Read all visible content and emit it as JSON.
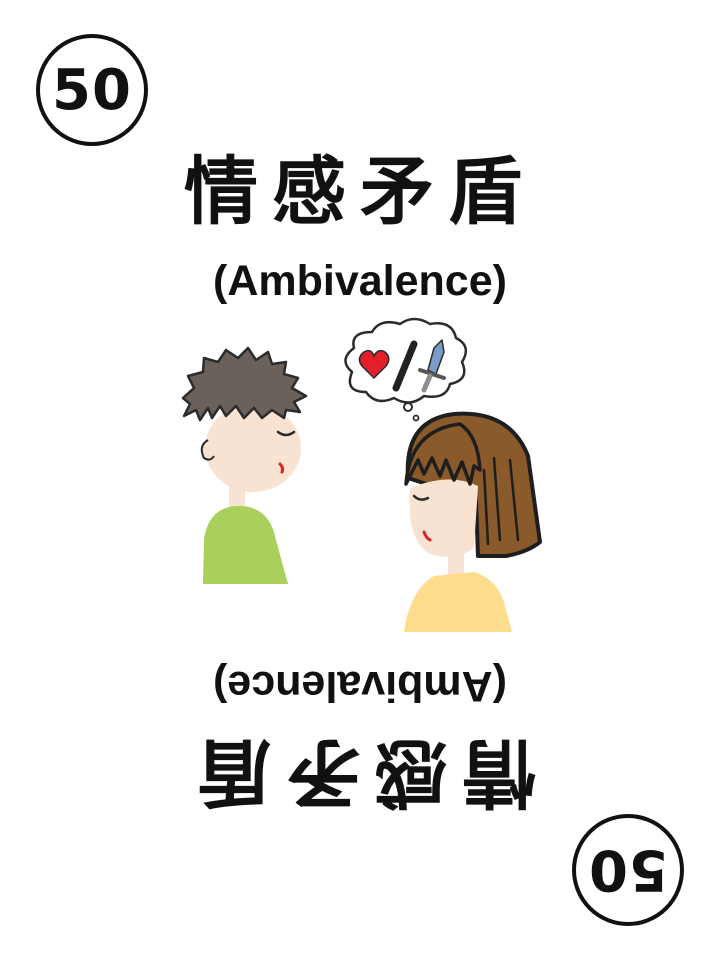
{
  "card": {
    "number": "50",
    "title_zh": "情感矛盾",
    "title_en": "(Ambivalence)"
  },
  "illustration": {
    "thought_bubble_icons": [
      "heart-icon",
      "slash-icon",
      "sword-icon"
    ],
    "colors": {
      "boy_shirt": "#a9cf5c",
      "girl_shirt": "#fddc8e",
      "skin": "#f8e3d3",
      "boy_hair": "#6a615a",
      "girl_hair": "#8b5a2b",
      "heart": "#e3202a",
      "sword": "#7a9cc8"
    }
  }
}
